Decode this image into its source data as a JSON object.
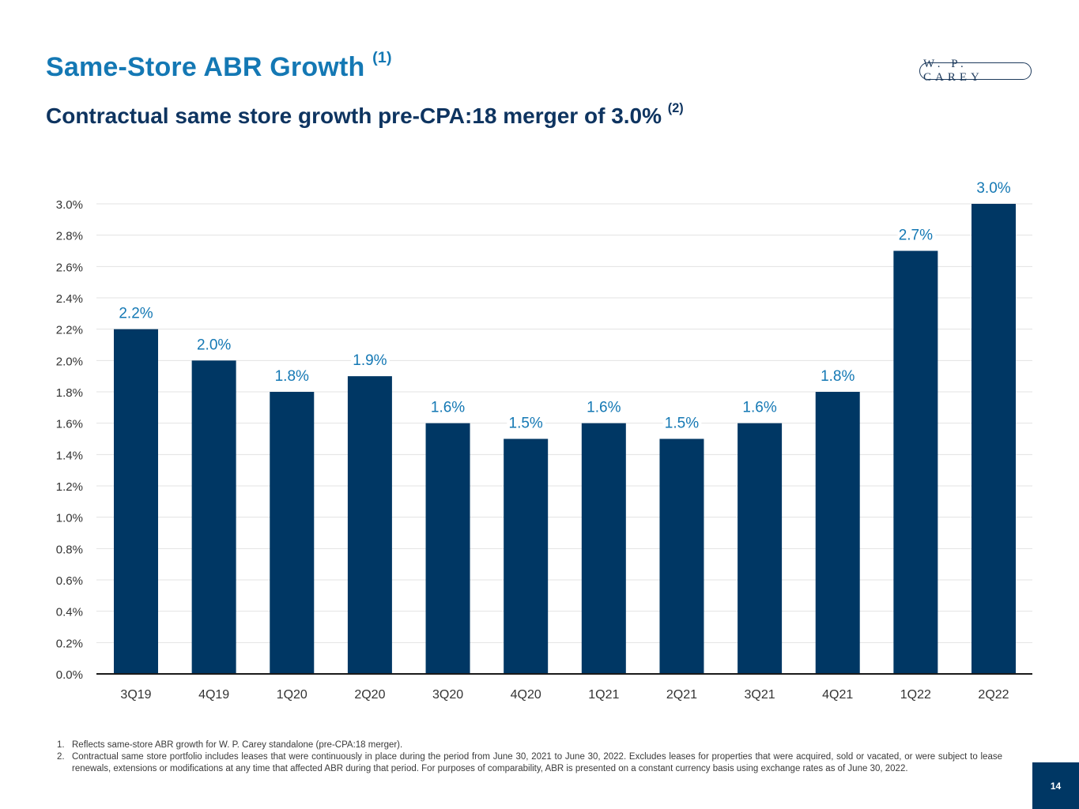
{
  "header": {
    "title": "Same-Store ABR Growth",
    "title_footnote": "(1)",
    "subtitle": "Contractual same store growth pre-CPA:18 merger of 3.0%",
    "subtitle_footnote": "(2)",
    "logo_text": "W. P. CAREY"
  },
  "colors": {
    "title": "#1478b4",
    "subtitle": "#0e3460",
    "bar": "#003764",
    "data_label": "#1478b4",
    "gridline": "#e3e3e3",
    "axis": "#1a1a1a",
    "page_badge": "#003764"
  },
  "chart_data": {
    "type": "bar",
    "title": "",
    "xlabel": "",
    "ylabel": "",
    "categories": [
      "3Q19",
      "4Q19",
      "1Q20",
      "2Q20",
      "3Q20",
      "4Q20",
      "1Q21",
      "2Q21",
      "3Q21",
      "4Q21",
      "1Q22",
      "2Q22"
    ],
    "values": [
      2.2,
      2.0,
      1.8,
      1.9,
      1.6,
      1.5,
      1.6,
      1.5,
      1.6,
      1.8,
      2.7,
      3.0
    ],
    "data_labels": [
      "2.2%",
      "2.0%",
      "1.8%",
      "1.9%",
      "1.6%",
      "1.5%",
      "1.6%",
      "1.5%",
      "1.6%",
      "1.8%",
      "2.7%",
      "3.0%"
    ],
    "yticks": [
      0.0,
      0.2,
      0.4,
      0.6,
      0.8,
      1.0,
      1.2,
      1.4,
      1.6,
      1.8,
      2.0,
      2.2,
      2.4,
      2.6,
      2.8,
      3.0
    ],
    "ytick_labels": [
      "0.0%",
      "0.2%",
      "0.4%",
      "0.6%",
      "0.8%",
      "1.0%",
      "1.2%",
      "1.4%",
      "1.6%",
      "1.8%",
      "2.0%",
      "2.2%",
      "2.4%",
      "2.6%",
      "2.8%",
      "3.0%"
    ],
    "ylim": [
      0,
      3.0
    ],
    "grid": true,
    "legend": "none",
    "unit": "%"
  },
  "footnotes": [
    {
      "num": "1.",
      "text": "Reflects same-store ABR growth for W. P. Carey standalone (pre-CPA:18 merger)."
    },
    {
      "num": "2.",
      "text": "Contractual same store portfolio includes leases that were continuously in place during the period from June 30, 2021 to June 30, 2022. Excludes leases for properties that were acquired, sold or vacated, or were subject to lease renewals, extensions or modifications at any time that affected ABR during that period. For purposes of comparability, ABR is presented on a constant currency basis using exchange rates as of June 30, 2022."
    }
  ],
  "page_number": "14"
}
